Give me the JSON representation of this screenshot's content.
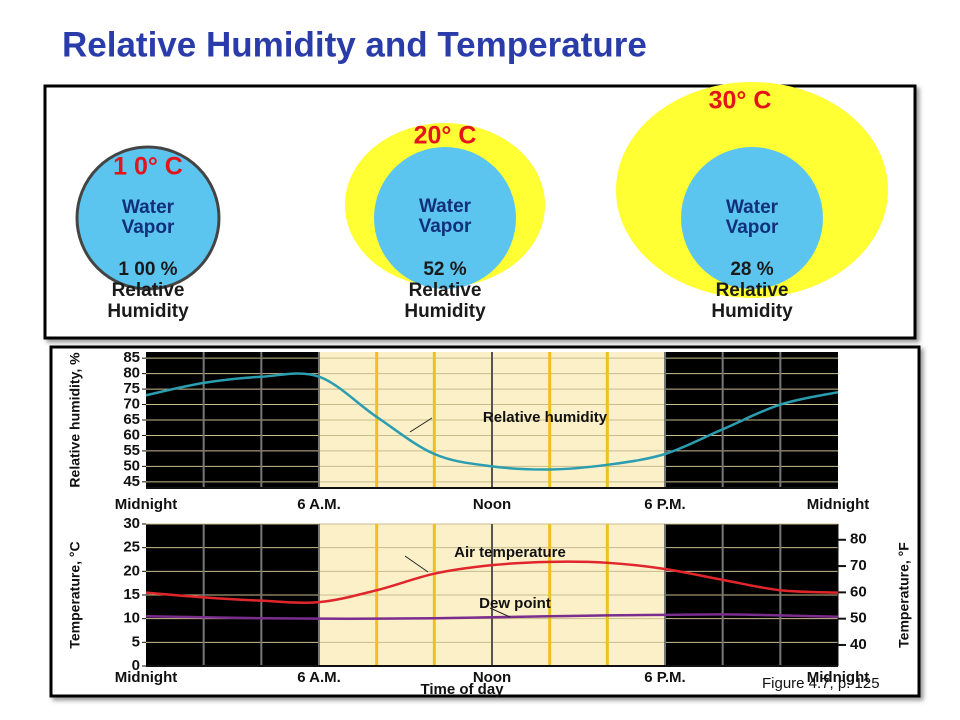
{
  "title": "Relative Humidity and Temperature",
  "diagram": {
    "panels": [
      {
        "temperature": "1 0° C",
        "inner_label_lines": [
          "Water",
          "Vapor"
        ],
        "humidity": "1 00 %",
        "humidity_label_lines": [
          "Relative",
          "Humidity"
        ]
      },
      {
        "temperature": "20° C",
        "inner_label_lines": [
          "Water",
          "Vapor"
        ],
        "humidity": "52 %",
        "humidity_label_lines": [
          "Relative",
          "Humidity"
        ]
      },
      {
        "temperature": "30° C",
        "inner_label_lines": [
          "Water",
          "Vapor"
        ],
        "humidity": "28 %",
        "humidity_label_lines": [
          "Relative",
          "Humidity"
        ]
      }
    ]
  },
  "chart_data": [
    {
      "type": "line",
      "y_label": "Relative humidity, %",
      "xlim": [
        0,
        24
      ],
      "xticks": [
        {
          "value": 0,
          "label": "Midnight"
        },
        {
          "value": 6,
          "label": "6 A.M."
        },
        {
          "value": 12,
          "label": "Noon"
        },
        {
          "value": 18,
          "label": "6 P.M."
        },
        {
          "value": 24,
          "label": "Midnight"
        }
      ],
      "ylim": [
        43,
        87
      ],
      "yticks": [
        45,
        50,
        55,
        60,
        65,
        70,
        75,
        80,
        85
      ],
      "grid": true,
      "x": [
        0,
        2,
        4,
        6,
        8,
        10,
        12,
        14,
        16,
        18,
        20,
        22,
        24
      ],
      "series": [
        {
          "name": "Relative humidity",
          "color": "#2a9db0",
          "values": [
            73,
            77,
            79,
            79,
            66,
            54,
            50,
            49,
            50.5,
            54,
            62,
            70,
            74
          ]
        }
      ],
      "annotations": [
        "Relative humidity"
      ]
    },
    {
      "type": "line",
      "y_label": "Temperature, °C",
      "y2_label": "Temperature, °F",
      "x_label": "Time of day",
      "xlim": [
        0,
        24
      ],
      "xticks": [
        {
          "value": 0,
          "label": "Midnight"
        },
        {
          "value": 6,
          "label": "6 A.M."
        },
        {
          "value": 12,
          "label": "Noon"
        },
        {
          "value": 18,
          "label": "6 P.M."
        },
        {
          "value": 24,
          "label": "Midnight"
        }
      ],
      "ylim": [
        0,
        30
      ],
      "yticks": [
        0,
        5,
        10,
        15,
        20,
        25,
        30
      ],
      "y2lim": [
        32,
        86
      ],
      "y2ticks": [
        40,
        50,
        60,
        70,
        80
      ],
      "grid": true,
      "x": [
        0,
        2,
        4,
        6,
        8,
        10,
        12,
        14,
        16,
        18,
        20,
        22,
        24
      ],
      "series": [
        {
          "name": "Air temperature",
          "color": "#e0262b",
          "values": [
            15.5,
            14.5,
            13.8,
            13.5,
            16,
            19.5,
            21.3,
            22,
            21.8,
            20.5,
            18.2,
            16,
            15.5
          ]
        },
        {
          "name": "Dew point",
          "color": "#7b2d8e",
          "values": [
            10.5,
            10.3,
            10.1,
            10,
            10,
            10.1,
            10.3,
            10.5,
            10.7,
            10.8,
            10.9,
            10.7,
            10.4
          ]
        }
      ],
      "annotations": [
        "Air temperature",
        "Dew point"
      ]
    }
  ],
  "caption": "Figure 4.7, p. 125"
}
